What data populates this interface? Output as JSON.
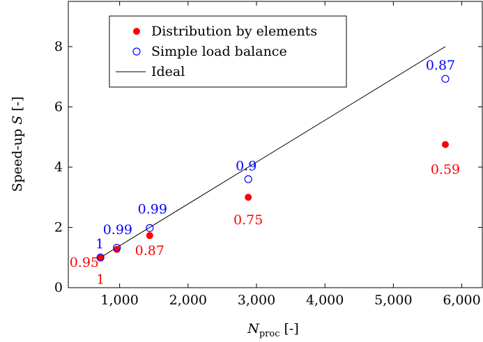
{
  "chart_data": {
    "type": "scatter",
    "xlabel": {
      "symbol": "N",
      "subscript": "proc",
      "unit": "[-]"
    },
    "ylabel": {
      "prefix": "Speed-up ",
      "symbol": "S",
      "unit": " [-]"
    },
    "xlim": [
      250,
      6300
    ],
    "ylim": [
      0,
      9.5
    ],
    "xticks": [
      1000,
      2000,
      3000,
      4000,
      5000,
      6000
    ],
    "xtick_labels": [
      "1,000",
      "2,000",
      "3,000",
      "4,000",
      "5,000",
      "6,000"
    ],
    "yticks": [
      0,
      2,
      4,
      6,
      8
    ],
    "ytick_labels": [
      "0",
      "2",
      "4",
      "6",
      "8"
    ],
    "grid": false,
    "legend_position": "top-left",
    "series": [
      {
        "name": "Distribution by elements",
        "marker": "filled-circle",
        "color": "#ff0000",
        "x": [
          720,
          960,
          1440,
          2880,
          5760
        ],
        "y": [
          1.0,
          1.27,
          1.73,
          3.0,
          4.75
        ],
        "labels": [
          "1",
          "0.95",
          "0.87",
          "0.75",
          "0.59"
        ]
      },
      {
        "name": "Simple load balance",
        "marker": "open-circle",
        "color": "#0000ff",
        "x": [
          720,
          960,
          1440,
          2880,
          5760
        ],
        "y": [
          1.0,
          1.32,
          1.98,
          3.6,
          6.93
        ],
        "labels": [
          "1",
          "0.99",
          "0.99",
          "0.9",
          "0.87"
        ]
      },
      {
        "name": "Ideal",
        "marker": "line",
        "color": "#000000",
        "x": [
          720,
          5760
        ],
        "y": [
          1,
          8
        ]
      }
    ]
  }
}
